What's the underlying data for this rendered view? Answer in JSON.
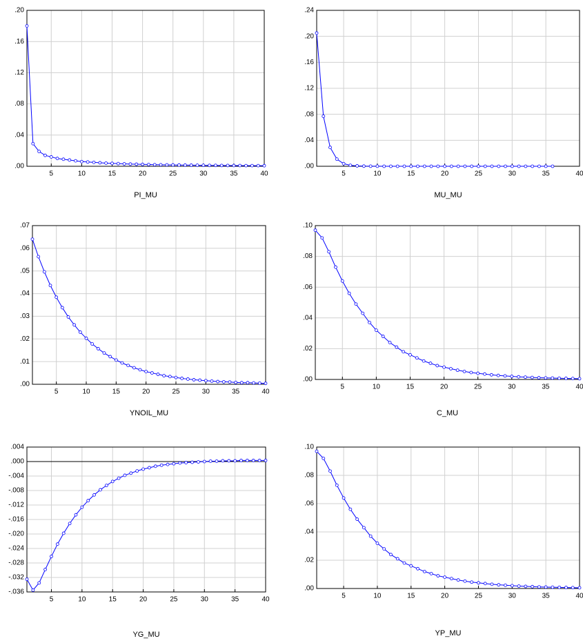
{
  "chart_data": [
    {
      "type": "line",
      "title": "PI_MU",
      "color": "#0000ff",
      "grid": true,
      "x": [
        1,
        2,
        3,
        4,
        5,
        6,
        7,
        8,
        9,
        10,
        11,
        12,
        13,
        14,
        15,
        16,
        17,
        18,
        19,
        20,
        21,
        22,
        23,
        24,
        25,
        26,
        27,
        28,
        29,
        30,
        31,
        32,
        33,
        34,
        35,
        36,
        37,
        38,
        39,
        40
      ],
      "values": [
        0.18,
        0.029,
        0.019,
        0.014,
        0.012,
        0.01,
        0.009,
        0.008,
        0.007,
        0.006,
        0.0055,
        0.005,
        0.0045,
        0.004,
        0.0037,
        0.0034,
        0.0031,
        0.0028,
        0.0026,
        0.0024,
        0.0022,
        0.002,
        0.0019,
        0.0018,
        0.0017,
        0.0016,
        0.0015,
        0.0014,
        0.0013,
        0.0012,
        0.0011,
        0.0011,
        0.001,
        0.001,
        0.0009,
        0.0009,
        0.0008,
        0.0008,
        0.0008,
        0.0007
      ],
      "xlim": [
        1,
        40
      ],
      "xticks": [
        5,
        10,
        15,
        20,
        25,
        30,
        35,
        40
      ],
      "ylim": [
        0,
        0.2
      ],
      "yticks": [
        {
          "value": 0,
          "label": ".00"
        },
        {
          "value": 0.04,
          "label": ".04"
        },
        {
          "value": 0.08,
          "label": ".08"
        },
        {
          "value": 0.12,
          "label": ".12"
        },
        {
          "value": 0.16,
          "label": ".16"
        },
        {
          "value": 0.2,
          "label": ".20"
        }
      ]
    },
    {
      "type": "line",
      "title": "MU_MU",
      "color": "#0000ff",
      "grid": true,
      "x": [
        1,
        2,
        3,
        4,
        5,
        6,
        7,
        8,
        9,
        10,
        11,
        12,
        13,
        14,
        15,
        16,
        17,
        18,
        19,
        20,
        21,
        22,
        23,
        24,
        25,
        26,
        27,
        28,
        29,
        30,
        31,
        32,
        33,
        34,
        35,
        36
      ],
      "values": [
        0.205,
        0.077,
        0.029,
        0.011,
        0.004,
        0.0015,
        0.0006,
        0.0002,
        0.0001,
        0.0001,
        0,
        0,
        0,
        0,
        0,
        0,
        0,
        0,
        0,
        0,
        0,
        0,
        0,
        0,
        0,
        0,
        0,
        0,
        0,
        0,
        0,
        0,
        0,
        0,
        0,
        0
      ],
      "xlim": [
        1,
        40
      ],
      "xticks": [
        5,
        10,
        15,
        20,
        25,
        30,
        35,
        40
      ],
      "ylim": [
        0,
        0.24
      ],
      "yticks": [
        {
          "value": 0,
          "label": ".00"
        },
        {
          "value": 0.04,
          "label": ".04"
        },
        {
          "value": 0.08,
          "label": ".08"
        },
        {
          "value": 0.12,
          "label": ".12"
        },
        {
          "value": 0.16,
          "label": ".16"
        },
        {
          "value": 0.2,
          "label": ".20"
        },
        {
          "value": 0.24,
          "label": ".24"
        }
      ]
    },
    {
      "type": "line",
      "title": "YNOIL_MU",
      "color": "#0000ff",
      "grid": true,
      "x": [
        1,
        2,
        3,
        4,
        5,
        6,
        7,
        8,
        9,
        10,
        11,
        12,
        13,
        14,
        15,
        16,
        17,
        18,
        19,
        20,
        21,
        22,
        23,
        24,
        25,
        26,
        27,
        28,
        29,
        30,
        31,
        32,
        33,
        34,
        35,
        36,
        37,
        38,
        39,
        40
      ],
      "values": [
        0.064,
        0.0563,
        0.0496,
        0.0436,
        0.0384,
        0.0338,
        0.0297,
        0.0262,
        0.023,
        0.0203,
        0.0178,
        0.0157,
        0.0138,
        0.0122,
        0.0107,
        0.0094,
        0.0083,
        0.0073,
        0.0064,
        0.0056,
        0.005,
        0.0044,
        0.0038,
        0.0034,
        0.003,
        0.0026,
        0.0023,
        0.002,
        0.0018,
        0.0016,
        0.0014,
        0.0012,
        0.0011,
        0.001,
        0.0008,
        0.0007,
        0.0007,
        0.0006,
        0.0005,
        0.0004
      ],
      "xlim": [
        1,
        40
      ],
      "xticks": [
        5,
        10,
        15,
        20,
        25,
        30,
        35,
        40
      ],
      "ylim": [
        0,
        0.07
      ],
      "yticks": [
        {
          "value": 0,
          "label": ".00"
        },
        {
          "value": 0.01,
          "label": ".01"
        },
        {
          "value": 0.02,
          "label": ".02"
        },
        {
          "value": 0.03,
          "label": ".03"
        },
        {
          "value": 0.04,
          "label": ".04"
        },
        {
          "value": 0.05,
          "label": ".05"
        },
        {
          "value": 0.06,
          "label": ".06"
        },
        {
          "value": 0.07,
          "label": ".07"
        }
      ]
    },
    {
      "type": "line",
      "title": "C_MU",
      "color": "#0000ff",
      "grid": true,
      "x": [
        1,
        2,
        3,
        4,
        5,
        6,
        7,
        8,
        9,
        10,
        11,
        12,
        13,
        14,
        15,
        16,
        17,
        18,
        19,
        20,
        21,
        22,
        23,
        24,
        25,
        26,
        27,
        28,
        29,
        30,
        31,
        32,
        33,
        34,
        35,
        36,
        37,
        38,
        39,
        40
      ],
      "values": [
        0.097,
        0.092,
        0.083,
        0.073,
        0.064,
        0.056,
        0.049,
        0.043,
        0.037,
        0.032,
        0.028,
        0.024,
        0.021,
        0.018,
        0.016,
        0.014,
        0.012,
        0.0105,
        0.009,
        0.008,
        0.007,
        0.006,
        0.0052,
        0.0045,
        0.004,
        0.0035,
        0.003,
        0.0026,
        0.0023,
        0.002,
        0.0017,
        0.0015,
        0.0013,
        0.0011,
        0.001,
        0.0009,
        0.0008,
        0.0007,
        0.0006,
        0.0005
      ],
      "xlim": [
        1,
        40
      ],
      "xticks": [
        5,
        10,
        15,
        20,
        25,
        30,
        35,
        40
      ],
      "ylim": [
        0,
        0.1
      ],
      "yticks": [
        {
          "value": 0,
          "label": ".00"
        },
        {
          "value": 0.02,
          "label": ".02"
        },
        {
          "value": 0.04,
          "label": ".04"
        },
        {
          "value": 0.06,
          "label": ".06"
        },
        {
          "value": 0.08,
          "label": ".08"
        },
        {
          "value": 0.1,
          "label": ".10"
        }
      ]
    },
    {
      "type": "line",
      "title": "YG_MU",
      "color": "#0000ff",
      "grid": true,
      "zero_line": true,
      "x": [
        1,
        2,
        3,
        4,
        5,
        6,
        7,
        8,
        9,
        10,
        11,
        12,
        13,
        14,
        15,
        16,
        17,
        18,
        19,
        20,
        21,
        22,
        23,
        24,
        25,
        26,
        27,
        28,
        29,
        30,
        31,
        32,
        33,
        34,
        35,
        36,
        37,
        38,
        39,
        40
      ],
      "values": [
        -0.0325,
        -0.0355,
        -0.0335,
        -0.0298,
        -0.0262,
        -0.0228,
        -0.0198,
        -0.0171,
        -0.0147,
        -0.0126,
        -0.0108,
        -0.0092,
        -0.0078,
        -0.0066,
        -0.0055,
        -0.0046,
        -0.0038,
        -0.0032,
        -0.0026,
        -0.0021,
        -0.0017,
        -0.0013,
        -0.001,
        -0.0008,
        -0.0006,
        -0.0004,
        -0.0003,
        -0.0002,
        -0.0001,
        0,
        0.0001,
        0.0001,
        0.0002,
        0.0002,
        0.0002,
        0.0003,
        0.0003,
        0.0003,
        0.0003,
        0.0003
      ],
      "xlim": [
        1,
        40
      ],
      "xticks": [
        5,
        10,
        15,
        20,
        25,
        30,
        35,
        40
      ],
      "ylim": [
        -0.036,
        0.004
      ],
      "yticks": [
        {
          "value": -0.036,
          "label": "-.036"
        },
        {
          "value": -0.032,
          "label": "-.032"
        },
        {
          "value": -0.028,
          "label": "-.028"
        },
        {
          "value": -0.024,
          "label": "-.024"
        },
        {
          "value": -0.02,
          "label": "-.020"
        },
        {
          "value": -0.016,
          "label": "-.016"
        },
        {
          "value": -0.012,
          "label": "-.012"
        },
        {
          "value": -0.008,
          "label": "-.008"
        },
        {
          "value": -0.004,
          "label": "-.004"
        },
        {
          "value": 0,
          "label": ".000"
        },
        {
          "value": 0.004,
          "label": ".004"
        }
      ]
    },
    {
      "type": "line",
      "title": "YP_MU",
      "color": "#0000ff",
      "grid": true,
      "x": [
        1,
        2,
        3,
        4,
        5,
        6,
        7,
        8,
        9,
        10,
        11,
        12,
        13,
        14,
        15,
        16,
        17,
        18,
        19,
        20,
        21,
        22,
        23,
        24,
        25,
        26,
        27,
        28,
        29,
        30,
        31,
        32,
        33,
        34,
        35,
        36,
        37,
        38,
        39,
        40
      ],
      "values": [
        0.097,
        0.092,
        0.083,
        0.073,
        0.064,
        0.056,
        0.049,
        0.043,
        0.037,
        0.032,
        0.028,
        0.024,
        0.021,
        0.018,
        0.016,
        0.014,
        0.012,
        0.0105,
        0.009,
        0.008,
        0.007,
        0.006,
        0.0052,
        0.0045,
        0.004,
        0.0035,
        0.003,
        0.0026,
        0.0023,
        0.002,
        0.0017,
        0.0015,
        0.0013,
        0.0011,
        0.001,
        0.0009,
        0.0008,
        0.0007,
        0.0006,
        0.0005
      ],
      "xlim": [
        1,
        40
      ],
      "xticks": [
        5,
        10,
        15,
        20,
        25,
        30,
        35,
        40
      ],
      "ylim": [
        0,
        0.1
      ],
      "yticks": [
        {
          "value": 0,
          "label": ".00"
        },
        {
          "value": 0.02,
          "label": ".02"
        },
        {
          "value": 0.04,
          "label": ".04"
        },
        {
          "value": 0.06,
          "label": ".06"
        },
        {
          "value": 0.08,
          "label": ".08"
        },
        {
          "value": 0.1,
          "label": ".10"
        }
      ]
    }
  ]
}
